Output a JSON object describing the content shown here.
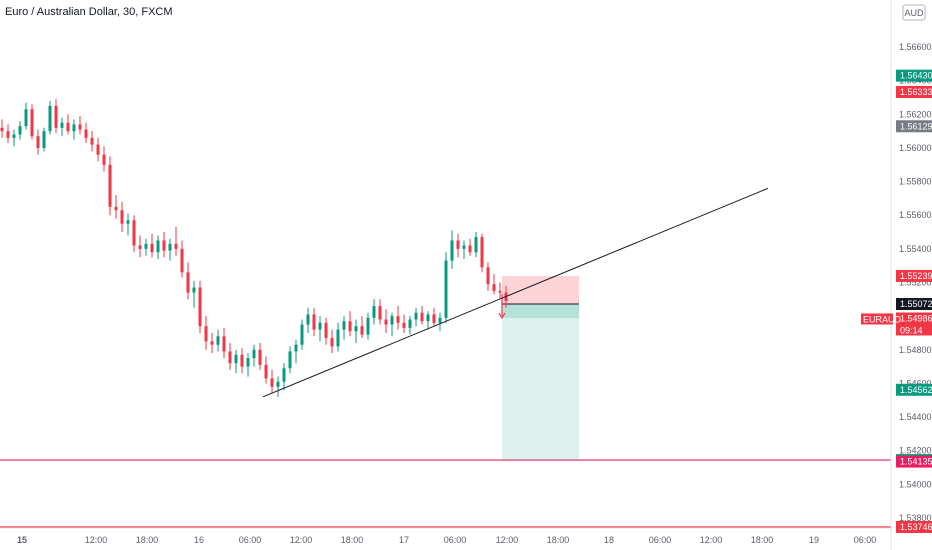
{
  "chart_title": "Euro / Australian Dollar, 30, FXCM",
  "currency_label": "AUD",
  "chart_data": {
    "type": "candlestick",
    "symbol": "EURAUD",
    "interval": "30",
    "source": "FXCM",
    "ylim": [
      1.5374,
      1.5688
    ],
    "y_ticks": [
      "1.56600",
      "1.56400",
      "1.56200",
      "1.56000",
      "1.55800",
      "1.55600",
      "1.55400",
      "1.55200",
      "1.54800",
      "1.54600",
      "1.54400",
      "1.54200",
      "1.54000",
      "1.53800"
    ],
    "x_ticks": [
      "15",
      "12:00",
      "18:00",
      "16",
      "06:00",
      "12:00",
      "18:00",
      "17",
      "06:00",
      "12:00",
      "18:00",
      "18",
      "06:00",
      "12:00",
      "18:00",
      "19",
      "06:00"
    ],
    "price_badges": [
      {
        "value": "1.56430",
        "color": "#089981"
      },
      {
        "value": "1.56333",
        "color": "#f23645"
      },
      {
        "value": "1.56129",
        "color": "#787b86"
      },
      {
        "value": "1.55239",
        "color": "#f23645"
      },
      {
        "value": "1.55072",
        "color": "#131722"
      },
      {
        "value": "1.54986",
        "color": "#f23645"
      },
      {
        "value": "1.54562",
        "color": "#089981"
      },
      {
        "value": "1.54144",
        "color": "#089981"
      },
      {
        "value": "1.54135",
        "color": "#e91e63"
      },
      {
        "value": "1.53746",
        "color": "#f23645"
      }
    ],
    "current_price": {
      "symbol": "EURAUD",
      "value": "1.54986",
      "countdown": "09:14",
      "color": "#f23645"
    },
    "horizontal_lines": [
      {
        "price": 1.54144,
        "color": "#e91e63"
      },
      {
        "price": 1.53746,
        "color": "#f23645"
      }
    ],
    "trendline": {
      "from": {
        "bar": 107,
        "price": 1.5452
      },
      "to": {
        "bar": 310,
        "price": 1.5576
      }
    },
    "short_position": {
      "entry": 1.55072,
      "stop": 1.55239,
      "target": 1.54144,
      "from_bar": 200,
      "to_bar": 232
    },
    "up_color": "#089981",
    "down_color": "#f23645",
    "candles": [
      {
        "o": 1.5612,
        "h": 1.5617,
        "l": 1.5606,
        "c": 1.561
      },
      {
        "o": 1.561,
        "h": 1.5614,
        "l": 1.5603,
        "c": 1.5606
      },
      {
        "o": 1.5606,
        "h": 1.5611,
        "l": 1.5601,
        "c": 1.5608
      },
      {
        "o": 1.5608,
        "h": 1.5616,
        "l": 1.5605,
        "c": 1.5613
      },
      {
        "o": 1.5613,
        "h": 1.5627,
        "l": 1.5611,
        "c": 1.5623
      },
      {
        "o": 1.5623,
        "h": 1.5626,
        "l": 1.5605,
        "c": 1.5607
      },
      {
        "o": 1.5607,
        "h": 1.5611,
        "l": 1.5596,
        "c": 1.56
      },
      {
        "o": 1.56,
        "h": 1.5612,
        "l": 1.5598,
        "c": 1.561
      },
      {
        "o": 1.561,
        "h": 1.5628,
        "l": 1.5608,
        "c": 1.5625
      },
      {
        "o": 1.5625,
        "h": 1.5629,
        "l": 1.5609,
        "c": 1.5612
      },
      {
        "o": 1.5612,
        "h": 1.5618,
        "l": 1.5607,
        "c": 1.5615
      },
      {
        "o": 1.5615,
        "h": 1.562,
        "l": 1.5608,
        "c": 1.561
      },
      {
        "o": 1.561,
        "h": 1.5617,
        "l": 1.5605,
        "c": 1.5614
      },
      {
        "o": 1.5614,
        "h": 1.5619,
        "l": 1.5608,
        "c": 1.5611
      },
      {
        "o": 1.5611,
        "h": 1.5615,
        "l": 1.5603,
        "c": 1.5606
      },
      {
        "o": 1.5606,
        "h": 1.561,
        "l": 1.5598,
        "c": 1.5602
      },
      {
        "o": 1.5602,
        "h": 1.5606,
        "l": 1.5592,
        "c": 1.5596
      },
      {
        "o": 1.5596,
        "h": 1.5601,
        "l": 1.5586,
        "c": 1.559
      },
      {
        "o": 1.559,
        "h": 1.5595,
        "l": 1.556,
        "c": 1.5565
      },
      {
        "o": 1.5565,
        "h": 1.5572,
        "l": 1.5558,
        "c": 1.5563
      },
      {
        "o": 1.5563,
        "h": 1.5568,
        "l": 1.555,
        "c": 1.5555
      },
      {
        "o": 1.5555,
        "h": 1.5561,
        "l": 1.5548,
        "c": 1.5557
      },
      {
        "o": 1.5557,
        "h": 1.556,
        "l": 1.5538,
        "c": 1.5542
      },
      {
        "o": 1.5542,
        "h": 1.5548,
        "l": 1.5535,
        "c": 1.554
      },
      {
        "o": 1.554,
        "h": 1.5546,
        "l": 1.5536,
        "c": 1.5543
      },
      {
        "o": 1.5543,
        "h": 1.5549,
        "l": 1.5535,
        "c": 1.5538
      },
      {
        "o": 1.5538,
        "h": 1.5548,
        "l": 1.5534,
        "c": 1.5545
      },
      {
        "o": 1.5545,
        "h": 1.555,
        "l": 1.5535,
        "c": 1.5539
      },
      {
        "o": 1.5539,
        "h": 1.5546,
        "l": 1.5533,
        "c": 1.5543
      },
      {
        "o": 1.5543,
        "h": 1.5553,
        "l": 1.5536,
        "c": 1.554
      },
      {
        "o": 1.554,
        "h": 1.5545,
        "l": 1.5523,
        "c": 1.5526
      },
      {
        "o": 1.5526,
        "h": 1.5532,
        "l": 1.551,
        "c": 1.5514
      },
      {
        "o": 1.5514,
        "h": 1.5521,
        "l": 1.5505,
        "c": 1.5517
      },
      {
        "o": 1.5517,
        "h": 1.5521,
        "l": 1.549,
        "c": 1.5494
      },
      {
        "o": 1.5494,
        "h": 1.55,
        "l": 1.548,
        "c": 1.5485
      },
      {
        "o": 1.5485,
        "h": 1.549,
        "l": 1.5478,
        "c": 1.5483
      },
      {
        "o": 1.5483,
        "h": 1.5492,
        "l": 1.5479,
        "c": 1.5488
      },
      {
        "o": 1.5488,
        "h": 1.5493,
        "l": 1.5475,
        "c": 1.5479
      },
      {
        "o": 1.5479,
        "h": 1.5484,
        "l": 1.5468,
        "c": 1.5472
      },
      {
        "o": 1.5472,
        "h": 1.548,
        "l": 1.5466,
        "c": 1.5477
      },
      {
        "o": 1.5477,
        "h": 1.5481,
        "l": 1.5466,
        "c": 1.547
      },
      {
        "o": 1.547,
        "h": 1.5478,
        "l": 1.5464,
        "c": 1.5475
      },
      {
        "o": 1.5475,
        "h": 1.5483,
        "l": 1.547,
        "c": 1.548
      },
      {
        "o": 1.548,
        "h": 1.5484,
        "l": 1.5468,
        "c": 1.5471
      },
      {
        "o": 1.5471,
        "h": 1.5476,
        "l": 1.546,
        "c": 1.5463
      },
      {
        "o": 1.5463,
        "h": 1.5468,
        "l": 1.5454,
        "c": 1.5458
      },
      {
        "o": 1.5458,
        "h": 1.5464,
        "l": 1.5452,
        "c": 1.5461
      },
      {
        "o": 1.5461,
        "h": 1.5472,
        "l": 1.5456,
        "c": 1.5469
      },
      {
        "o": 1.5469,
        "h": 1.5482,
        "l": 1.5466,
        "c": 1.5479
      },
      {
        "o": 1.5479,
        "h": 1.5486,
        "l": 1.5472,
        "c": 1.5483
      },
      {
        "o": 1.5483,
        "h": 1.5498,
        "l": 1.548,
        "c": 1.5495
      },
      {
        "o": 1.5495,
        "h": 1.5505,
        "l": 1.549,
        "c": 1.5501
      },
      {
        "o": 1.5501,
        "h": 1.5505,
        "l": 1.5488,
        "c": 1.5492
      },
      {
        "o": 1.5492,
        "h": 1.55,
        "l": 1.5485,
        "c": 1.5496
      },
      {
        "o": 1.5496,
        "h": 1.5499,
        "l": 1.5483,
        "c": 1.5487
      },
      {
        "o": 1.5487,
        "h": 1.5492,
        "l": 1.5478,
        "c": 1.5482
      },
      {
        "o": 1.5482,
        "h": 1.5496,
        "l": 1.5479,
        "c": 1.5492
      },
      {
        "o": 1.5492,
        "h": 1.55,
        "l": 1.5486,
        "c": 1.5497
      },
      {
        "o": 1.5497,
        "h": 1.5503,
        "l": 1.5488,
        "c": 1.5491
      },
      {
        "o": 1.5491,
        "h": 1.5498,
        "l": 1.5484,
        "c": 1.5494
      },
      {
        "o": 1.5494,
        "h": 1.55,
        "l": 1.5487,
        "c": 1.5489
      },
      {
        "o": 1.5489,
        "h": 1.5502,
        "l": 1.5486,
        "c": 1.5499
      },
      {
        "o": 1.5499,
        "h": 1.551,
        "l": 1.5495,
        "c": 1.5506
      },
      {
        "o": 1.5506,
        "h": 1.551,
        "l": 1.5495,
        "c": 1.5498
      },
      {
        "o": 1.5498,
        "h": 1.5504,
        "l": 1.549,
        "c": 1.5495
      },
      {
        "o": 1.5495,
        "h": 1.5502,
        "l": 1.5488,
        "c": 1.55
      },
      {
        "o": 1.55,
        "h": 1.5506,
        "l": 1.5492,
        "c": 1.5496
      },
      {
        "o": 1.5496,
        "h": 1.5501,
        "l": 1.549,
        "c": 1.5493
      },
      {
        "o": 1.5493,
        "h": 1.55,
        "l": 1.5489,
        "c": 1.5498
      },
      {
        "o": 1.5498,
        "h": 1.5505,
        "l": 1.5494,
        "c": 1.5502
      },
      {
        "o": 1.5502,
        "h": 1.5506,
        "l": 1.5495,
        "c": 1.5497
      },
      {
        "o": 1.5497,
        "h": 1.5503,
        "l": 1.5492,
        "c": 1.5501
      },
      {
        "o": 1.5501,
        "h": 1.5505,
        "l": 1.5494,
        "c": 1.5496
      },
      {
        "o": 1.5496,
        "h": 1.5502,
        "l": 1.5491,
        "c": 1.5499
      },
      {
        "o": 1.5499,
        "h": 1.5538,
        "l": 1.5496,
        "c": 1.5533
      },
      {
        "o": 1.5533,
        "h": 1.5551,
        "l": 1.5528,
        "c": 1.5545
      },
      {
        "o": 1.5545,
        "h": 1.5549,
        "l": 1.5535,
        "c": 1.554
      },
      {
        "o": 1.554,
        "h": 1.5545,
        "l": 1.5534,
        "c": 1.5542
      },
      {
        "o": 1.5542,
        "h": 1.5546,
        "l": 1.5536,
        "c": 1.5538
      },
      {
        "o": 1.5538,
        "h": 1.555,
        "l": 1.5535,
        "c": 1.5547
      },
      {
        "o": 1.5547,
        "h": 1.5549,
        "l": 1.5526,
        "c": 1.5529
      },
      {
        "o": 1.5529,
        "h": 1.5532,
        "l": 1.5515,
        "c": 1.5519
      },
      {
        "o": 1.5519,
        "h": 1.5525,
        "l": 1.5513,
        "c": 1.5515
      },
      {
        "o": 1.5515,
        "h": 1.552,
        "l": 1.551,
        "c": 1.5514
      },
      {
        "o": 1.5514,
        "h": 1.5518,
        "l": 1.5505,
        "c": 1.5509
      }
    ]
  }
}
